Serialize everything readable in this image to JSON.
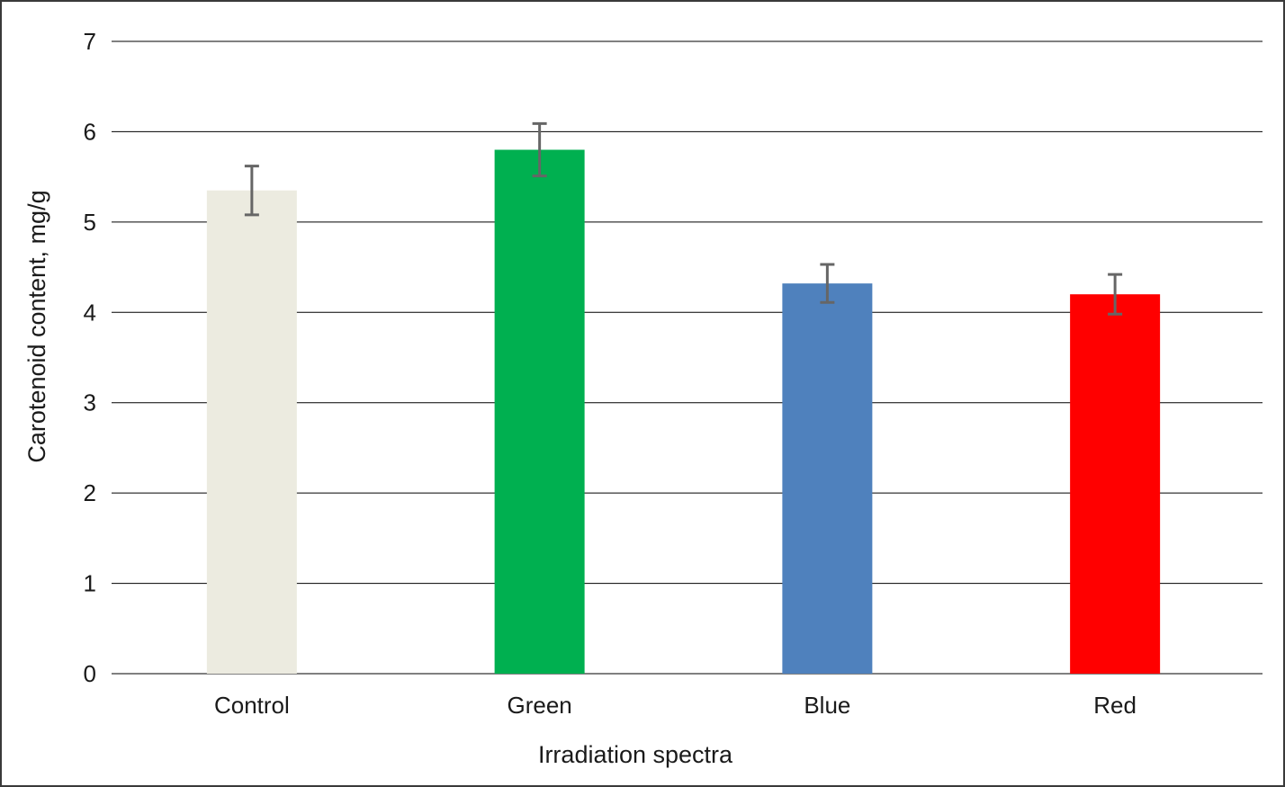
{
  "chart_data": {
    "type": "bar",
    "title": "",
    "xlabel": "Irradiation spectra",
    "ylabel": "Carotenoid content, mg/g",
    "ylim": [
      0,
      7
    ],
    "yticks": [
      "0",
      "1",
      "2",
      "3",
      "4",
      "5",
      "6",
      "7"
    ],
    "grid": true,
    "legend": "none",
    "categories": [
      "Control",
      "Green",
      "Blue",
      "Red"
    ],
    "values": [
      5.35,
      5.8,
      4.32,
      4.2
    ],
    "error": [
      0.27,
      0.29,
      0.21,
      0.22
    ],
    "colors": [
      "#ecebe0",
      "#00b050",
      "#4f81bd",
      "#ff0000"
    ],
    "error_color": "#666666",
    "grid_color": "#000000"
  }
}
